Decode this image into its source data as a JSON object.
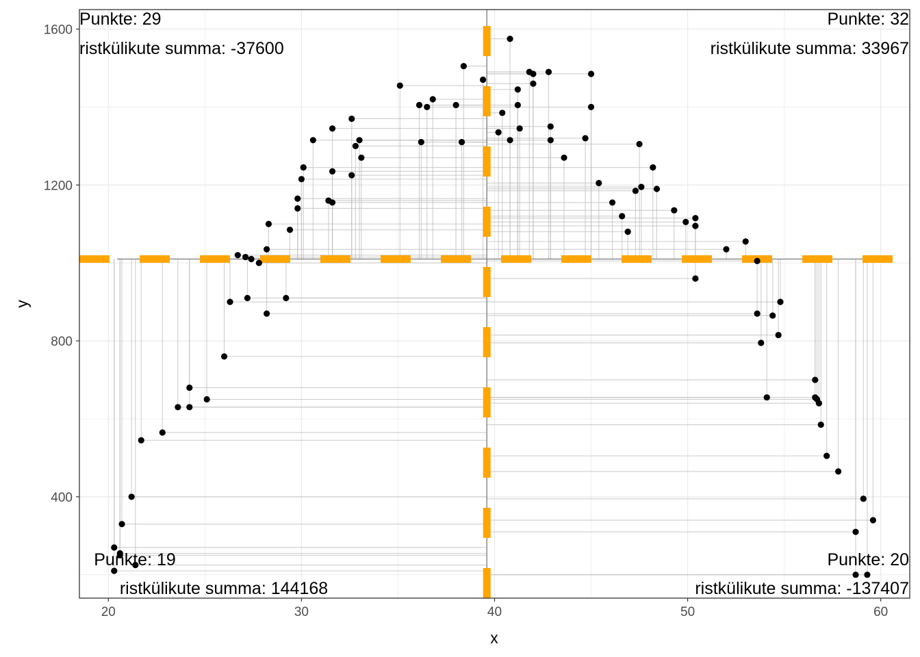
{
  "chart_data": {
    "type": "scatter",
    "xlabel": "x",
    "ylabel": "y",
    "xlim": [
      18.5,
      61.5
    ],
    "ylim": [
      140,
      1650
    ],
    "x_ticks": [
      20,
      30,
      40,
      50,
      60
    ],
    "y_ticks": [
      400,
      800,
      1200,
      1600
    ],
    "grid": true,
    "mean_x": 39.6,
    "mean_y": 1010,
    "colors": {
      "points": "#000000",
      "mean_lines": "#FFA500",
      "rect_lines": "#bdbdbd",
      "grid": "#ebebeb"
    },
    "annotations": {
      "top_left_count": "Punkte: 29",
      "top_left_sum": "ristkülikute summa: -37600",
      "top_right_count": "Punkte: 32",
      "top_right_sum": "ristkülikute summa: 33967",
      "bottom_left_count": "Punkte: 19",
      "bottom_left_sum": "ristkülikute summa: 144168",
      "bottom_right_count": "Punkte: 20",
      "bottom_right_sum": "ristkülikute summa: -137407"
    },
    "points": [
      [
        20.3,
        270
      ],
      [
        20.3,
        210
      ],
      [
        20.6,
        255
      ],
      [
        20.6,
        250
      ],
      [
        20.7,
        330
      ],
      [
        21.2,
        400
      ],
      [
        21.4,
        225
      ],
      [
        21.7,
        545
      ],
      [
        22.8,
        565
      ],
      [
        23.6,
        630
      ],
      [
        24.2,
        630
      ],
      [
        24.2,
        680
      ],
      [
        25.1,
        650
      ],
      [
        26.0,
        760
      ],
      [
        26.3,
        900
      ],
      [
        26.7,
        1020
      ],
      [
        27.1,
        1015
      ],
      [
        27.2,
        910
      ],
      [
        27.4,
        1010
      ],
      [
        27.8,
        1000
      ],
      [
        28.2,
        870
      ],
      [
        28.2,
        1035
      ],
      [
        28.3,
        1100
      ],
      [
        29.2,
        910
      ],
      [
        29.4,
        1085
      ],
      [
        29.8,
        1165
      ],
      [
        29.8,
        1140
      ],
      [
        30.0,
        1215
      ],
      [
        30.1,
        1245
      ],
      [
        30.6,
        1315
      ],
      [
        31.4,
        1160
      ],
      [
        31.6,
        1155
      ],
      [
        31.6,
        1235
      ],
      [
        31.6,
        1345
      ],
      [
        32.6,
        1370
      ],
      [
        32.6,
        1225
      ],
      [
        32.8,
        1300
      ],
      [
        33.0,
        1315
      ],
      [
        33.1,
        1270
      ],
      [
        35.1,
        1455
      ],
      [
        36.1,
        1405
      ],
      [
        36.2,
        1310
      ],
      [
        36.5,
        1400
      ],
      [
        36.8,
        1420
      ],
      [
        38.0,
        1405
      ],
      [
        38.3,
        1310
      ],
      [
        38.4,
        1505
      ],
      [
        39.4,
        1470
      ],
      [
        40.2,
        1335
      ],
      [
        40.4,
        1385
      ],
      [
        40.8,
        1315
      ],
      [
        40.8,
        1575
      ],
      [
        41.2,
        1445
      ],
      [
        41.2,
        1405
      ],
      [
        41.3,
        1345
      ],
      [
        41.8,
        1490
      ],
      [
        42.0,
        1485
      ],
      [
        42.0,
        1460
      ],
      [
        42.8,
        1490
      ],
      [
        42.9,
        1350
      ],
      [
        42.9,
        1315
      ],
      [
        43.6,
        1270
      ],
      [
        44.7,
        1320
      ],
      [
        45.0,
        1485
      ],
      [
        45.0,
        1400
      ],
      [
        45.4,
        1205
      ],
      [
        46.1,
        1155
      ],
      [
        46.6,
        1120
      ],
      [
        46.9,
        1080
      ],
      [
        47.3,
        1185
      ],
      [
        47.5,
        1305
      ],
      [
        47.6,
        1195
      ],
      [
        48.2,
        1245
      ],
      [
        48.4,
        1190
      ],
      [
        49.3,
        1135
      ],
      [
        49.9,
        1105
      ],
      [
        50.4,
        1115
      ],
      [
        50.4,
        1095
      ],
      [
        50.4,
        960
      ],
      [
        52.0,
        1035
      ],
      [
        53.0,
        1055
      ],
      [
        53.6,
        1005
      ],
      [
        53.6,
        870
      ],
      [
        53.8,
        795
      ],
      [
        54.1,
        655
      ],
      [
        54.4,
        865
      ],
      [
        54.7,
        815
      ],
      [
        54.8,
        900
      ],
      [
        56.6,
        700
      ],
      [
        56.6,
        655
      ],
      [
        56.7,
        650
      ],
      [
        56.8,
        640
      ],
      [
        56.9,
        585
      ],
      [
        57.2,
        505
      ],
      [
        57.8,
        465
      ],
      [
        58.7,
        310
      ],
      [
        58.7,
        200
      ],
      [
        59.1,
        395
      ],
      [
        59.3,
        200
      ],
      [
        59.6,
        340
      ]
    ]
  }
}
